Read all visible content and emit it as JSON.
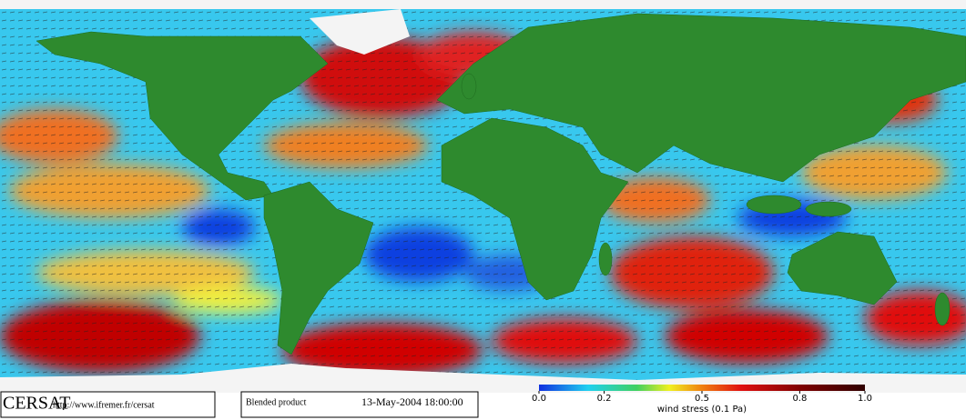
{
  "header": {
    "logo": "CERSAT",
    "url": "http://www.ifremer.fr/cersat"
  },
  "product": {
    "name": "Blended product",
    "date": "13-May-2004 18:00:00"
  },
  "colorbar": {
    "label": "wind stress (0.1 Pa)",
    "lim": [
      0,
      1
    ],
    "ticks": [
      {
        "value": 0,
        "label": "0.0"
      },
      0.2,
      0.5,
      0.8,
      {
        "value": 1,
        "label": "1.0"
      }
    ]
  }
}
